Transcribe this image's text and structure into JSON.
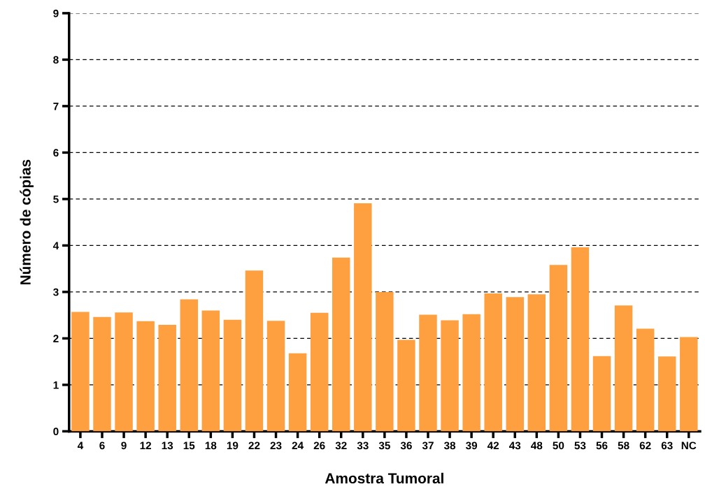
{
  "chart_data": {
    "type": "bar",
    "xlabel": "Amostra Tumoral",
    "ylabel": "Número de cópias",
    "categories": [
      "4",
      "6",
      "9",
      "12",
      "13",
      "15",
      "18",
      "19",
      "22",
      "23",
      "24",
      "26",
      "32",
      "33",
      "35",
      "36",
      "37",
      "38",
      "39",
      "42",
      "43",
      "48",
      "50",
      "53",
      "56",
      "58",
      "62",
      "63",
      "NC"
    ],
    "values": [
      2.57,
      2.46,
      2.56,
      2.37,
      2.29,
      2.84,
      2.6,
      2.4,
      3.46,
      2.38,
      1.68,
      2.55,
      3.74,
      4.91,
      3.0,
      1.97,
      2.51,
      2.39,
      2.52,
      2.97,
      2.89,
      2.95,
      3.58,
      3.96,
      1.62,
      2.71,
      2.21,
      1.61,
      2.03
    ],
    "color": "#ffa040",
    "ylim": [
      0,
      9
    ],
    "yticks": [
      0,
      1,
      2,
      3,
      4,
      5,
      6,
      7,
      8,
      9
    ],
    "grid": "y",
    "line_style": "dashed"
  }
}
